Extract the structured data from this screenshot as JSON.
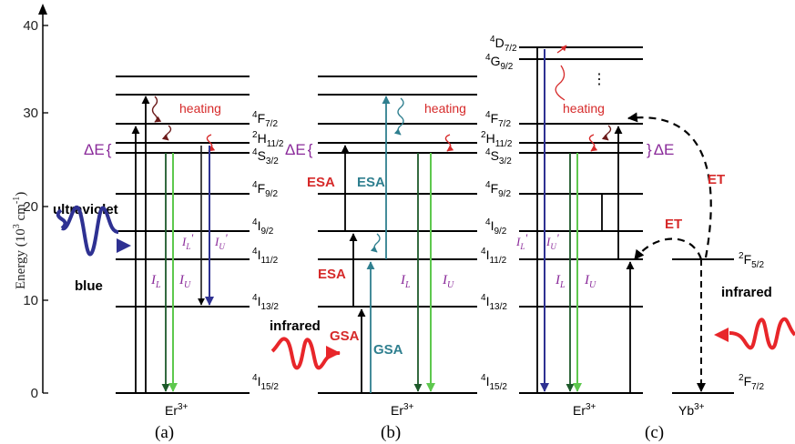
{
  "axis": {
    "ylabel": "Energy (10",
    "ylabel_exp": "3",
    "ylabel_unit": " cm",
    "ylabel_unit_exp": "-1",
    "ylabel_close": ")",
    "ticks": [
      "0",
      "10",
      "20",
      "30",
      "40"
    ]
  },
  "levels": {
    "f72": {
      "base": "4",
      "main": "F",
      "sub": "7/2"
    },
    "h112": {
      "base": "2",
      "main": "H",
      "sub": "11/2"
    },
    "s32": {
      "base": "4",
      "main": "S",
      "sub": "3/2"
    },
    "f92": {
      "base": "4",
      "main": "F",
      "sub": "9/2"
    },
    "i92": {
      "base": "4",
      "main": "I",
      "sub": "9/2"
    },
    "i112": {
      "base": "4",
      "main": "I",
      "sub": "11/2"
    },
    "i132": {
      "base": "4",
      "main": "I",
      "sub": "13/2"
    },
    "i152": {
      "base": "4",
      "main": "I",
      "sub": "15/2"
    },
    "d72": {
      "base": "4",
      "main": "D",
      "sub": "7/2"
    },
    "g92": {
      "base": "4",
      "main": "G",
      "sub": "9/2"
    },
    "yb_f52": {
      "base": "2",
      "main": "F",
      "sub": "5/2"
    },
    "yb_f72": {
      "base": "2",
      "main": "F",
      "sub": "7/2"
    }
  },
  "labels": {
    "heating": "heating",
    "delta_e": "ΔE",
    "brace_open": "{",
    "brace_close": "}",
    "ultraviolet": "ultraviolet",
    "blue": "blue",
    "infrared": "infrared",
    "esa": "ESA",
    "gsa": "GSA",
    "et": "ET",
    "ellipsis": "⋮",
    "i_main": "I",
    "i_l": "L",
    "i_u": "U",
    "prime": "'",
    "er_ion": "Er",
    "er_charge": "3+",
    "yb_ion": "Yb",
    "yb_charge": "3+"
  },
  "panels": {
    "a": "(a)",
    "b": "(b)",
    "c": "(c)"
  },
  "colors": {
    "level": "#000000",
    "blue_arrow": "#2e3192",
    "green_light": "#5ec84e",
    "green_dark": "#1d5a2a",
    "teal": "#2f7f8f",
    "heating": "#d62a2a",
    "wavy": "#6b1a1a",
    "purple": "#8a2a9a",
    "label_red": "#d62a2a",
    "teal_text": "#2f7f8f",
    "ir_red": "#e8262a"
  }
}
